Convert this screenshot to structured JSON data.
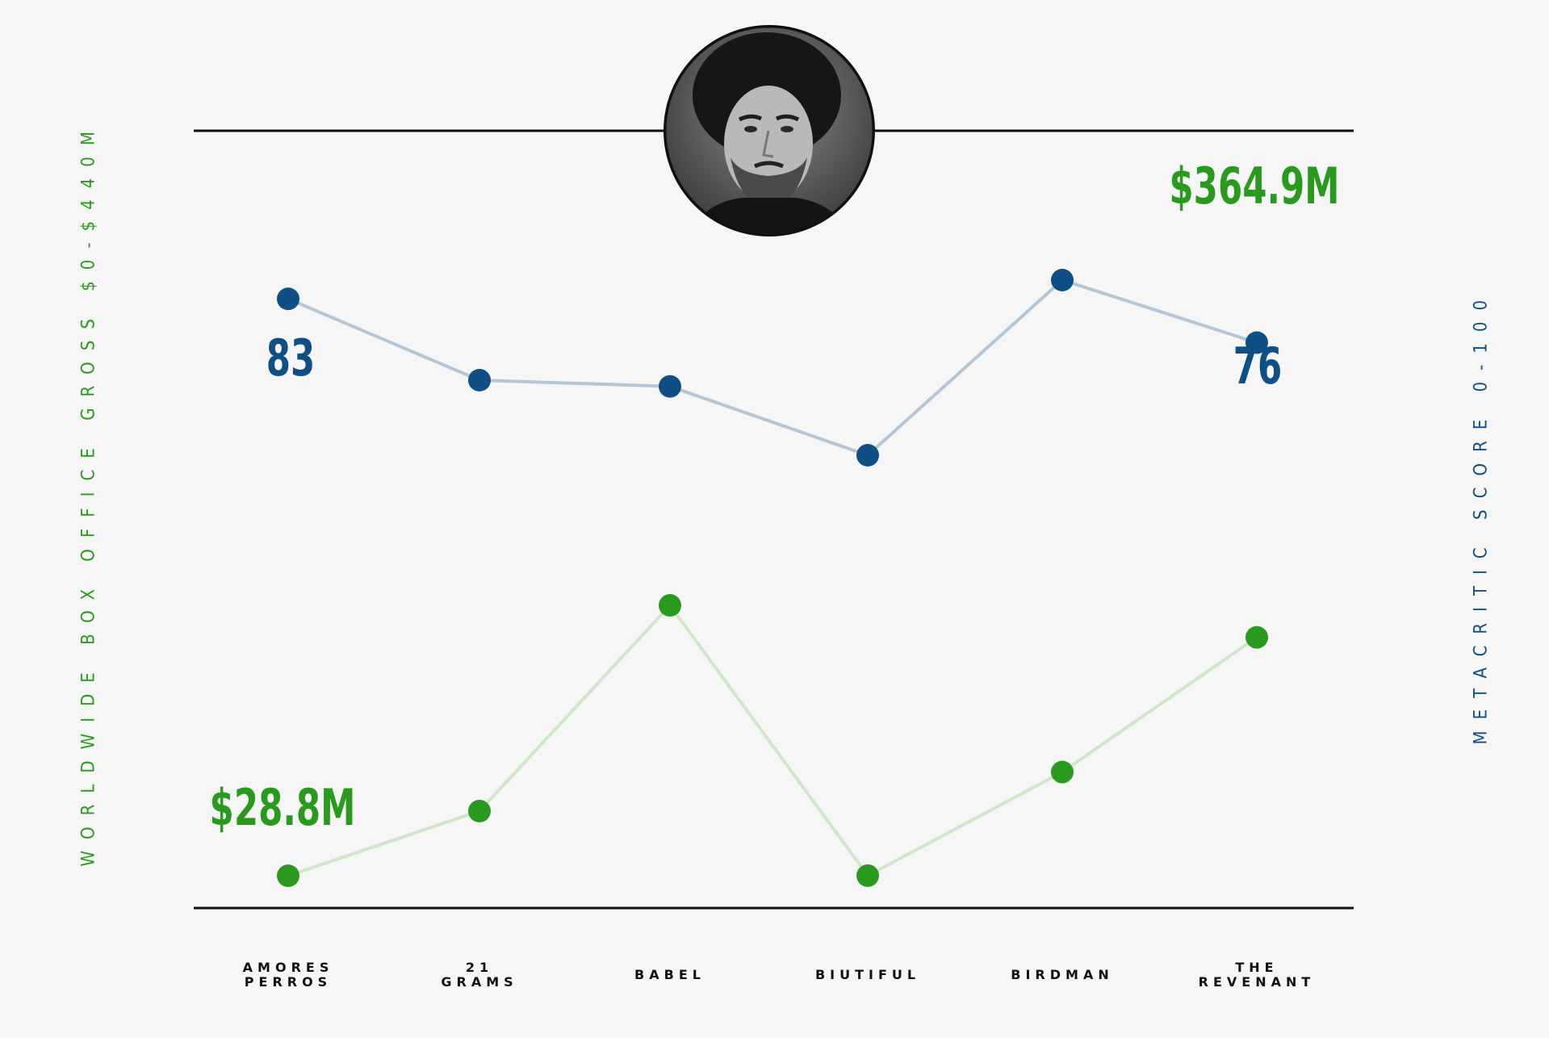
{
  "chart_data": {
    "type": "line",
    "categories": [
      "AMORES\nPERROS",
      "21\nGRAMS",
      "BABEL",
      "BIUTIFUL",
      "BIRDMAN",
      "THE\nREVENANT"
    ],
    "series": [
      {
        "axis": "left",
        "color": "#2a9a1e",
        "line_color": "#cfe6c9",
        "values": [
          28.8,
          120,
          410,
          29,
          175,
          364.9
        ],
        "unit": "$M"
      },
      {
        "axis": "right",
        "color": "#0f4f85",
        "line_color": "#b3c7d8",
        "values": [
          83,
          70,
          69,
          58,
          86,
          76
        ]
      }
    ],
    "left_axis": {
      "label": "WORLDWIDE BOX OFFICE GROSS $0-$440M",
      "range": [
        0,
        440
      ]
    },
    "right_axis": {
      "label": "METACRITIC SCORE 0-100",
      "range": [
        0,
        100
      ]
    },
    "annotations": {
      "gross_first": "$28.8M",
      "gross_last": "$364.9M",
      "score_first": "83",
      "score_last": "76"
    }
  },
  "portrait": {
    "icon": "director-portrait"
  }
}
